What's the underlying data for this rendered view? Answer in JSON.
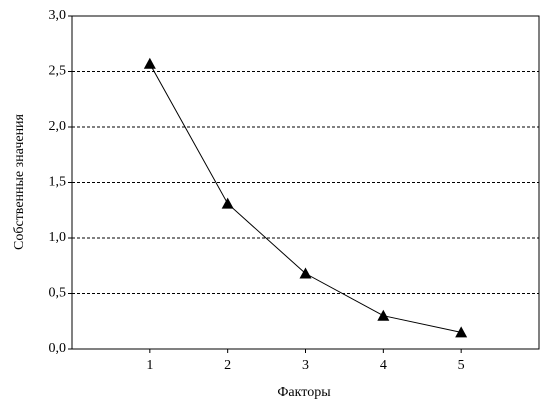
{
  "chart_data": {
    "type": "line",
    "x_label": "Факторы",
    "y_label": "Собственные значения",
    "x": [
      1,
      2,
      3,
      4,
      5
    ],
    "series": [
      {
        "color": "#000000",
        "values": [
          2.57,
          1.31,
          0.68,
          0.3,
          0.15
        ]
      }
    ],
    "xlim": [
      0,
      6
    ],
    "xticks": [
      1,
      2,
      3,
      4,
      5
    ],
    "ylim": [
      0,
      3
    ],
    "yticks": [
      {
        "value": 0,
        "label": "0,0"
      },
      {
        "value": 0.5,
        "label": "0,5"
      },
      {
        "value": 1,
        "label": "1,0"
      },
      {
        "value": 1.5,
        "label": "1,5"
      },
      {
        "value": 2,
        "label": "2,0"
      },
      {
        "value": 2.5,
        "label": "2,5"
      },
      {
        "value": 3,
        "label": "3,0"
      }
    ],
    "grid": true,
    "marker": "triangle"
  }
}
